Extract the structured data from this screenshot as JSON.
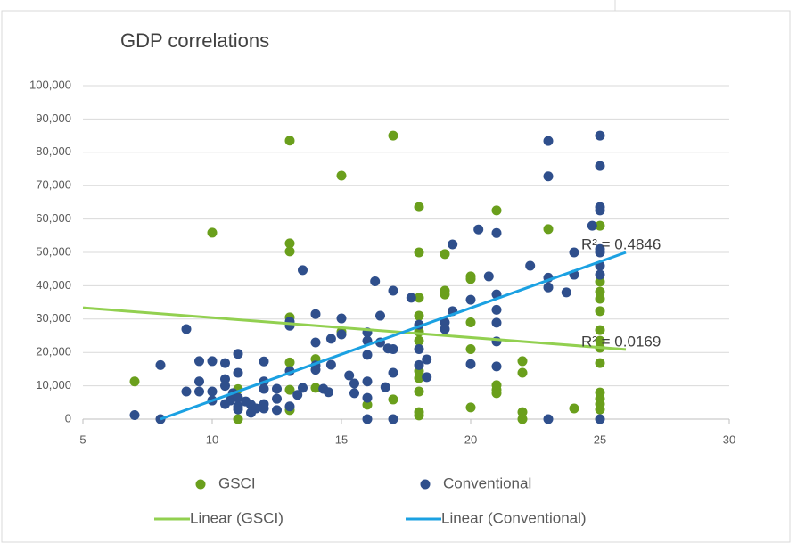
{
  "chart_data": {
    "type": "scatter",
    "title": "GDP correlations",
    "xlim": [
      5,
      30
    ],
    "xticks": [
      5,
      10,
      15,
      20,
      25,
      30
    ],
    "ylim": [
      0,
      100000
    ],
    "yticks": [
      0,
      {
        "value": 10000,
        "label": "10,000"
      },
      {
        "value": 20000,
        "label": "20,000"
      },
      {
        "value": 30000,
        "label": "30,000"
      },
      {
        "value": 40000,
        "label": "40,000"
      },
      {
        "value": 50000,
        "label": "50,000"
      },
      {
        "value": 60000,
        "label": "60,000"
      },
      {
        "value": 70000,
        "label": "70,000"
      },
      {
        "value": 80000,
        "label": "80,000"
      },
      {
        "value": 90000,
        "label": "90,000"
      },
      {
        "value": 100000,
        "label": "100,000"
      }
    ],
    "grid": true,
    "legend": "bottom",
    "series": [
      {
        "name": "GSCI",
        "color": "#6a9f1c",
        "x": [
          7,
          10,
          11,
          11,
          13,
          13,
          13,
          13,
          13,
          13,
          13,
          14,
          14,
          15,
          15,
          16,
          17,
          17,
          18,
          18,
          18,
          18,
          18,
          18,
          18,
          18,
          18,
          18,
          18,
          19,
          19,
          19,
          20,
          20,
          20,
          20,
          20,
          21,
          21,
          21,
          21,
          22,
          22,
          22,
          22,
          23,
          24,
          25,
          25,
          25,
          25,
          25,
          25,
          25,
          25,
          25,
          25,
          25,
          25,
          25
        ],
        "values": [
          11300,
          55900,
          9000,
          0,
          83500,
          52700,
          50300,
          30500,
          17000,
          8800,
          2700,
          18000,
          9400,
          73000,
          26200,
          4300,
          85000,
          5900,
          63600,
          50000,
          36400,
          31000,
          26200,
          23500,
          14400,
          12300,
          8300,
          2100,
          1100,
          49500,
          38500,
          37400,
          42800,
          42000,
          29000,
          21000,
          3500,
          62600,
          10200,
          8800,
          7800,
          17400,
          13900,
          2100,
          0,
          57000,
          3200,
          58000,
          41200,
          38200,
          36100,
          32400,
          26700,
          23500,
          21400,
          16800,
          8000,
          6100,
          4500,
          2900
        ]
      },
      {
        "name": "Conventional",
        "color": "#2f4f8c",
        "x": [
          7,
          8,
          8,
          9,
          9,
          9.5,
          9.5,
          9.5,
          10,
          10,
          10,
          10.5,
          10.5,
          10.5,
          10.5,
          10.7,
          10.8,
          11,
          11,
          11,
          11,
          11,
          11.3,
          11.5,
          11.5,
          11.7,
          12,
          12,
          12,
          12,
          12,
          12.5,
          12.5,
          12.5,
          13,
          13,
          13,
          13,
          13.5,
          13.5,
          13.3,
          14,
          14,
          14,
          14,
          14.3,
          14.5,
          14.6,
          14.6,
          15,
          15,
          15.3,
          15.5,
          15.5,
          16,
          16,
          16,
          16,
          16,
          16,
          16.3,
          16.5,
          16.5,
          16.7,
          16.8,
          17,
          17,
          17,
          17,
          17.7,
          18,
          18,
          18,
          18.3,
          18.3,
          19,
          19,
          19.3,
          19.3,
          20,
          20,
          20.3,
          20.7,
          21,
          21,
          21,
          21,
          21,
          21,
          22.3,
          23,
          23,
          23,
          23,
          23,
          23.7,
          24,
          24,
          24.7,
          25,
          25,
          25,
          25,
          25,
          25,
          25,
          25,
          25
        ],
        "values": [
          1200,
          16200,
          0,
          27000,
          8300,
          8300,
          17400,
          11300,
          17400,
          8300,
          5600,
          16800,
          12000,
          10000,
          4500,
          5600,
          7800,
          19600,
          13900,
          6400,
          3800,
          2900,
          5300,
          1900,
          4300,
          3200,
          17300,
          11300,
          9100,
          4500,
          3200,
          9100,
          2700,
          6100,
          29200,
          28000,
          14400,
          3800,
          44700,
          9400,
          7300,
          31500,
          23000,
          16100,
          14800,
          9100,
          8100,
          24100,
          16300,
          30200,
          25400,
          13100,
          10700,
          7800,
          26000,
          23500,
          19300,
          11300,
          6400,
          0,
          41300,
          31000,
          23000,
          9600,
          21200,
          38500,
          21000,
          13900,
          0,
          36400,
          28300,
          21000,
          16200,
          17900,
          12600,
          29000,
          27000,
          52400,
          32400,
          35800,
          16500,
          56900,
          42800,
          55800,
          37400,
          32800,
          28900,
          23300,
          15800,
          46000,
          83400,
          72800,
          42400,
          39500,
          0,
          38000,
          50000,
          43300,
          58000,
          85000,
          75900,
          63600,
          62600,
          51000,
          50000,
          46000,
          43300,
          0
        ]
      }
    ],
    "trendlines": [
      {
        "name": "Linear (GSCI)",
        "color": "#92d050",
        "x": [
          5,
          26
        ],
        "values": [
          33400,
          20900
        ],
        "label": "R² = 0.0169"
      },
      {
        "name": "Linear (Conventional)",
        "color": "#1ba1e2",
        "x": [
          8,
          26
        ],
        "values": [
          0,
          50000
        ],
        "label": "R² = 0.4846"
      }
    ]
  }
}
